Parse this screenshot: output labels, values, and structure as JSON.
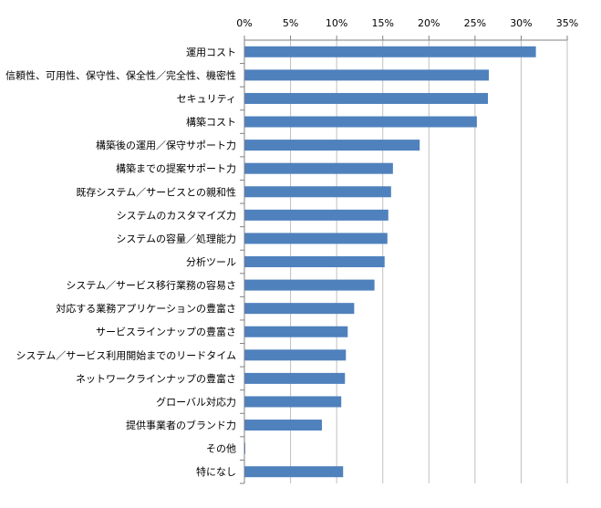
{
  "chart_data": {
    "type": "bar",
    "orientation": "horizontal",
    "title": "",
    "xlabel": "",
    "ylabel": "",
    "xlim": [
      0,
      35
    ],
    "tick_values": [
      0,
      5,
      10,
      15,
      20,
      25,
      30,
      35
    ],
    "tick_labels": [
      "0%",
      "5%",
      "10%",
      "15%",
      "20%",
      "25%",
      "30%",
      "35%"
    ],
    "axis_position": "top",
    "grid": true,
    "legend": "none",
    "categories": [
      "運用コスト",
      "信頼性、可用性、保守性、保全性／完全性、機密性",
      "セキュリティ",
      "構築コスト",
      "構築後の運用／保守サポート力",
      "構築までの提案サポート力",
      "既存システム／サービスとの親和性",
      "システムのカスタマイズ力",
      "システムの容量／処理能力",
      "分析ツール",
      "システム／サービス移行業務の容易さ",
      "対応する業務アプリケーションの豊富さ",
      "サービスラインナップの豊富さ",
      "システム／サービス利用開始までのリードタイム",
      "ネットワークラインナップの豊富さ",
      "グローバル対応力",
      "提供事業者のブランド力",
      "その他",
      "特になし"
    ],
    "values": [
      31.6,
      26.5,
      26.4,
      25.2,
      19.0,
      16.1,
      15.9,
      15.6,
      15.5,
      15.2,
      14.1,
      11.9,
      11.2,
      11.0,
      10.9,
      10.5,
      8.4,
      0.1,
      10.7
    ],
    "bar_color": "#4f81bd"
  }
}
